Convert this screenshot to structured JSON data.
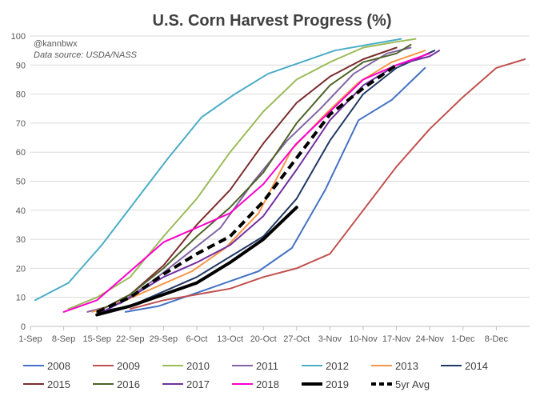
{
  "chart_data": {
    "type": "line",
    "title": "U.S. Corn Harvest Progress (%)",
    "annotation": {
      "handle": "@kannbwx",
      "source": "Data source: USDA/NASS"
    },
    "xlabel": "",
    "ylabel": "",
    "x_unit": "days since Sep 1",
    "x_ticks": [
      {
        "value": 0,
        "label": "1-Sep"
      },
      {
        "value": 7,
        "label": "8-Sep"
      },
      {
        "value": 14,
        "label": "15-Sep"
      },
      {
        "value": 21,
        "label": "22-Sep"
      },
      {
        "value": 28,
        "label": "29-Sep"
      },
      {
        "value": 35,
        "label": "6-Oct"
      },
      {
        "value": 42,
        "label": "13-Oct"
      },
      {
        "value": 49,
        "label": "20-Oct"
      },
      {
        "value": 56,
        "label": "27-Oct"
      },
      {
        "value": 63,
        "label": "3-Nov"
      },
      {
        "value": 70,
        "label": "10-Nov"
      },
      {
        "value": 77,
        "label": "17-Nov"
      },
      {
        "value": 84,
        "label": "24-Nov"
      },
      {
        "value": 91,
        "label": "1-Dec"
      },
      {
        "value": 98,
        "label": "8-Dec"
      }
    ],
    "xlim": [
      0,
      105
    ],
    "ylim": [
      0,
      100
    ],
    "y_ticks": [
      0,
      10,
      20,
      30,
      40,
      50,
      60,
      70,
      80,
      90,
      100
    ],
    "grid": "horizontal",
    "legend_position": "bottom",
    "series": [
      {
        "name": "2008",
        "color": "#4472C4",
        "width": 2,
        "dashed": false,
        "points": [
          [
            20,
            5
          ],
          [
            27,
            7
          ],
          [
            34,
            11
          ],
          [
            41,
            15
          ],
          [
            48,
            19
          ],
          [
            55,
            27
          ],
          [
            62,
            47
          ],
          [
            69,
            71
          ],
          [
            76,
            78
          ],
          [
            83,
            89
          ]
        ]
      },
      {
        "name": "2009",
        "color": "#C0504D",
        "width": 2,
        "dashed": false,
        "points": [
          [
            21,
            6
          ],
          [
            28,
            9
          ],
          [
            35,
            11
          ],
          [
            42,
            13
          ],
          [
            49,
            17
          ],
          [
            56,
            20
          ],
          [
            63,
            25
          ],
          [
            70,
            40
          ],
          [
            77,
            55
          ],
          [
            84,
            68
          ],
          [
            91,
            79
          ],
          [
            98,
            89
          ],
          [
            104,
            92
          ]
        ]
      },
      {
        "name": "2010",
        "color": "#9BBB59",
        "width": 2,
        "dashed": false,
        "points": [
          [
            8,
            6
          ],
          [
            14,
            10
          ],
          [
            21,
            17
          ],
          [
            28,
            31
          ],
          [
            35,
            44
          ],
          [
            42,
            60
          ],
          [
            49,
            74
          ],
          [
            56,
            85
          ],
          [
            63,
            91
          ],
          [
            70,
            96
          ],
          [
            77,
            98
          ],
          [
            81,
            99
          ]
        ]
      },
      {
        "name": "2011",
        "color": "#8064A2",
        "width": 2,
        "dashed": false,
        "points": [
          [
            12,
            5
          ],
          [
            19,
            8
          ],
          [
            26,
            16
          ],
          [
            33,
            25
          ],
          [
            40,
            34
          ],
          [
            47,
            50
          ],
          [
            54,
            64
          ],
          [
            61,
            75
          ],
          [
            68,
            87
          ],
          [
            75,
            94
          ],
          [
            80,
            96
          ]
        ]
      },
      {
        "name": "2012",
        "color": "#4BACC6",
        "width": 2,
        "dashed": false,
        "points": [
          [
            1,
            9
          ],
          [
            8,
            15
          ],
          [
            15,
            28
          ],
          [
            22,
            43
          ],
          [
            29,
            58
          ],
          [
            36,
            72
          ],
          [
            43,
            80
          ],
          [
            50,
            87
          ],
          [
            57,
            91
          ],
          [
            64,
            95
          ],
          [
            71,
            97
          ],
          [
            78,
            99
          ]
        ]
      },
      {
        "name": "2013",
        "color": "#F79646",
        "width": 2,
        "dashed": false,
        "points": [
          [
            13,
            5
          ],
          [
            20,
            9
          ],
          [
            27,
            14
          ],
          [
            34,
            19
          ],
          [
            41,
            27
          ],
          [
            48,
            39
          ],
          [
            55,
            61
          ],
          [
            62,
            73
          ],
          [
            69,
            84
          ],
          [
            76,
            91
          ],
          [
            83,
            95
          ]
        ]
      },
      {
        "name": "2014",
        "color": "#1F3864",
        "width": 2,
        "dashed": false,
        "points": [
          [
            14,
            5
          ],
          [
            21,
            7
          ],
          [
            28,
            12
          ],
          [
            35,
            17
          ],
          [
            42,
            24
          ],
          [
            49,
            31
          ],
          [
            56,
            44
          ],
          [
            63,
            64
          ],
          [
            70,
            80
          ],
          [
            77,
            89
          ],
          [
            85,
            95
          ]
        ]
      },
      {
        "name": "2015",
        "color": "#7B2C2C",
        "width": 2,
        "dashed": false,
        "points": [
          [
            14,
            5
          ],
          [
            21,
            11
          ],
          [
            28,
            21
          ],
          [
            35,
            35
          ],
          [
            42,
            47
          ],
          [
            49,
            63
          ],
          [
            56,
            77
          ],
          [
            63,
            86
          ],
          [
            70,
            92
          ],
          [
            77,
            96
          ]
        ]
      },
      {
        "name": "2016",
        "color": "#4F6228",
        "width": 2,
        "dashed": false,
        "points": [
          [
            14,
            5
          ],
          [
            21,
            11
          ],
          [
            28,
            20
          ],
          [
            35,
            31
          ],
          [
            42,
            41
          ],
          [
            49,
            53
          ],
          [
            56,
            70
          ],
          [
            63,
            83
          ],
          [
            70,
            91
          ],
          [
            77,
            94
          ],
          [
            80,
            97
          ]
        ]
      },
      {
        "name": "2017",
        "color": "#7030A0",
        "width": 2,
        "dashed": false,
        "points": [
          [
            14,
            4
          ],
          [
            21,
            10
          ],
          [
            28,
            17
          ],
          [
            35,
            22
          ],
          [
            42,
            28
          ],
          [
            49,
            38
          ],
          [
            56,
            54
          ],
          [
            63,
            71
          ],
          [
            70,
            83
          ],
          [
            77,
            90
          ],
          [
            84,
            93
          ],
          [
            86,
            95
          ]
        ]
      },
      {
        "name": "2018",
        "color": "#FF00CC",
        "width": 2,
        "dashed": false,
        "points": [
          [
            7,
            5
          ],
          [
            14,
            9
          ],
          [
            21,
            19
          ],
          [
            28,
            29
          ],
          [
            35,
            34
          ],
          [
            42,
            39
          ],
          [
            49,
            49
          ],
          [
            56,
            63
          ],
          [
            63,
            74
          ],
          [
            70,
            85
          ],
          [
            77,
            90
          ],
          [
            84,
            94
          ]
        ]
      },
      {
        "name": "2019",
        "color": "#000000",
        "width": 4,
        "dashed": false,
        "points": [
          [
            14,
            4
          ],
          [
            21,
            7
          ],
          [
            28,
            11
          ],
          [
            35,
            15
          ],
          [
            42,
            22
          ],
          [
            49,
            30
          ],
          [
            56,
            41
          ]
        ]
      },
      {
        "name": "5yr Avg",
        "color": "#000000",
        "width": 4,
        "dashed": true,
        "points": [
          [
            14,
            5
          ],
          [
            21,
            10
          ],
          [
            28,
            18
          ],
          [
            35,
            25
          ],
          [
            42,
            31
          ],
          [
            49,
            43
          ],
          [
            56,
            58
          ],
          [
            63,
            73
          ],
          [
            70,
            82
          ],
          [
            77,
            90
          ]
        ]
      }
    ]
  }
}
